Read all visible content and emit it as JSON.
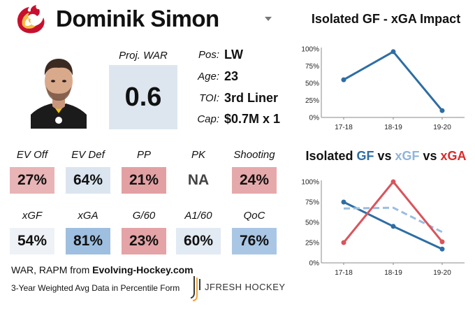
{
  "header": {
    "player_name": "Dominik Simon",
    "team_logo_icon": "flaming-c-logo-icon",
    "photo": "player-headshot"
  },
  "war": {
    "label": "Proj. WAR",
    "value": "0.6"
  },
  "info": [
    {
      "key": "Pos:",
      "value": "LW"
    },
    {
      "key": "Age:",
      "value": "23"
    },
    {
      "key": "TOI:",
      "value": "3rd Liner"
    },
    {
      "key": "Cap:",
      "value": "$0.7M x 1"
    }
  ],
  "metrics": [
    {
      "label": "EV Off",
      "value": "27%",
      "color": "#e8b4b6"
    },
    {
      "label": "EV Def",
      "value": "64%",
      "color": "#dbe5f0"
    },
    {
      "label": "PP",
      "value": "21%",
      "color": "#e3a0a3"
    },
    {
      "label": "PK",
      "value": "NA",
      "color": "#ffffff"
    },
    {
      "label": "Shooting",
      "value": "24%",
      "color": "#e6a9ab"
    },
    {
      "label": "xGF",
      "value": "54%",
      "color": "#eef2f6"
    },
    {
      "label": "xGA",
      "value": "81%",
      "color": "#9ebfe0"
    },
    {
      "label": "G/60",
      "value": "23%",
      "color": "#e4a3a6"
    },
    {
      "label": "A1/60",
      "value": "60%",
      "color": "#e2eaf3"
    },
    {
      "label": "QoC",
      "value": "76%",
      "color": "#a9c6e4"
    }
  ],
  "footer": {
    "source_prefix": "WAR, RAPM from ",
    "source_name": "Evolving-Hockey.com",
    "note": "3-Year Weighted Avg Data in Percentile Form",
    "brand": "JFRESH HOCKEY"
  },
  "colors": {
    "gf": "#2e6da4",
    "xgf": "#9bbde0",
    "xga": "#d9545c"
  },
  "chart_data": [
    {
      "type": "line",
      "title": "Isolated GF - xGA Impact",
      "categories": [
        "17-18",
        "18-19",
        "19-20"
      ],
      "series": [
        {
          "name": "GF - xGA",
          "values": [
            55,
            96,
            10
          ]
        }
      ],
      "y_ticks": [
        "0%",
        "25%",
        "50%",
        "75%",
        "100%"
      ],
      "ylim": [
        0,
        100
      ],
      "xlabel": "",
      "ylabel": ""
    },
    {
      "type": "line",
      "title_parts": [
        "Isolated ",
        "GF",
        " vs ",
        "xGF",
        " vs ",
        "xGA"
      ],
      "categories": [
        "17-18",
        "18-19",
        "19-20"
      ],
      "series": [
        {
          "name": "GF",
          "values": [
            75,
            45,
            17
          ]
        },
        {
          "name": "xGF",
          "values": [
            67,
            68,
            38
          ],
          "dashed": true
        },
        {
          "name": "xGA",
          "values": [
            25,
            100,
            26
          ]
        }
      ],
      "y_ticks": [
        "0%",
        "25%",
        "50%",
        "75%",
        "100%"
      ],
      "ylim": [
        0,
        100
      ],
      "xlabel": "",
      "ylabel": ""
    }
  ]
}
